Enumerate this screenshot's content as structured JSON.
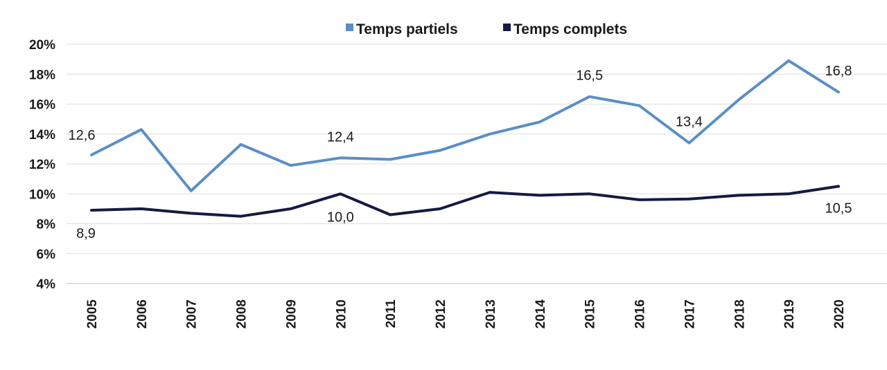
{
  "chart_data": {
    "type": "line",
    "x": [
      "2005",
      "2006",
      "2007",
      "2008",
      "2009",
      "2010",
      "2011",
      "2012",
      "2013",
      "2014",
      "2015",
      "2016",
      "2017",
      "2018",
      "2019",
      "2020"
    ],
    "series": [
      {
        "name": "Temps partiels",
        "color": "#5b8ec7",
        "values": [
          12.6,
          14.3,
          10.2,
          13.3,
          11.9,
          12.4,
          12.3,
          12.9,
          14.0,
          14.8,
          16.5,
          15.9,
          13.4,
          16.3,
          18.9,
          16.8
        ]
      },
      {
        "name": "Temps complets",
        "color": "#141a42",
        "values": [
          8.9,
          9.0,
          8.7,
          8.5,
          9.0,
          10.0,
          8.6,
          9.0,
          10.1,
          9.9,
          10.0,
          9.6,
          9.65,
          9.9,
          10.0,
          10.5
        ]
      }
    ],
    "ylim": [
      4,
      20
    ],
    "yticks": [
      "4%",
      "6%",
      "8%",
      "10%",
      "12%",
      "14%",
      "16%",
      "18%",
      "20%"
    ],
    "grid": true,
    "legend_position": "top-center",
    "annotations": [
      {
        "series": 0,
        "index": 0,
        "text": "12,6"
      },
      {
        "series": 0,
        "index": 5,
        "text": "12,4"
      },
      {
        "series": 0,
        "index": 10,
        "text": "16,5"
      },
      {
        "series": 0,
        "index": 12,
        "text": "13,4"
      },
      {
        "series": 0,
        "index": 15,
        "text": "16,8"
      },
      {
        "series": 1,
        "index": 0,
        "text": "8,9"
      },
      {
        "series": 1,
        "index": 5,
        "text": "10,0"
      },
      {
        "series": 1,
        "index": 15,
        "text": "10,5"
      }
    ]
  }
}
